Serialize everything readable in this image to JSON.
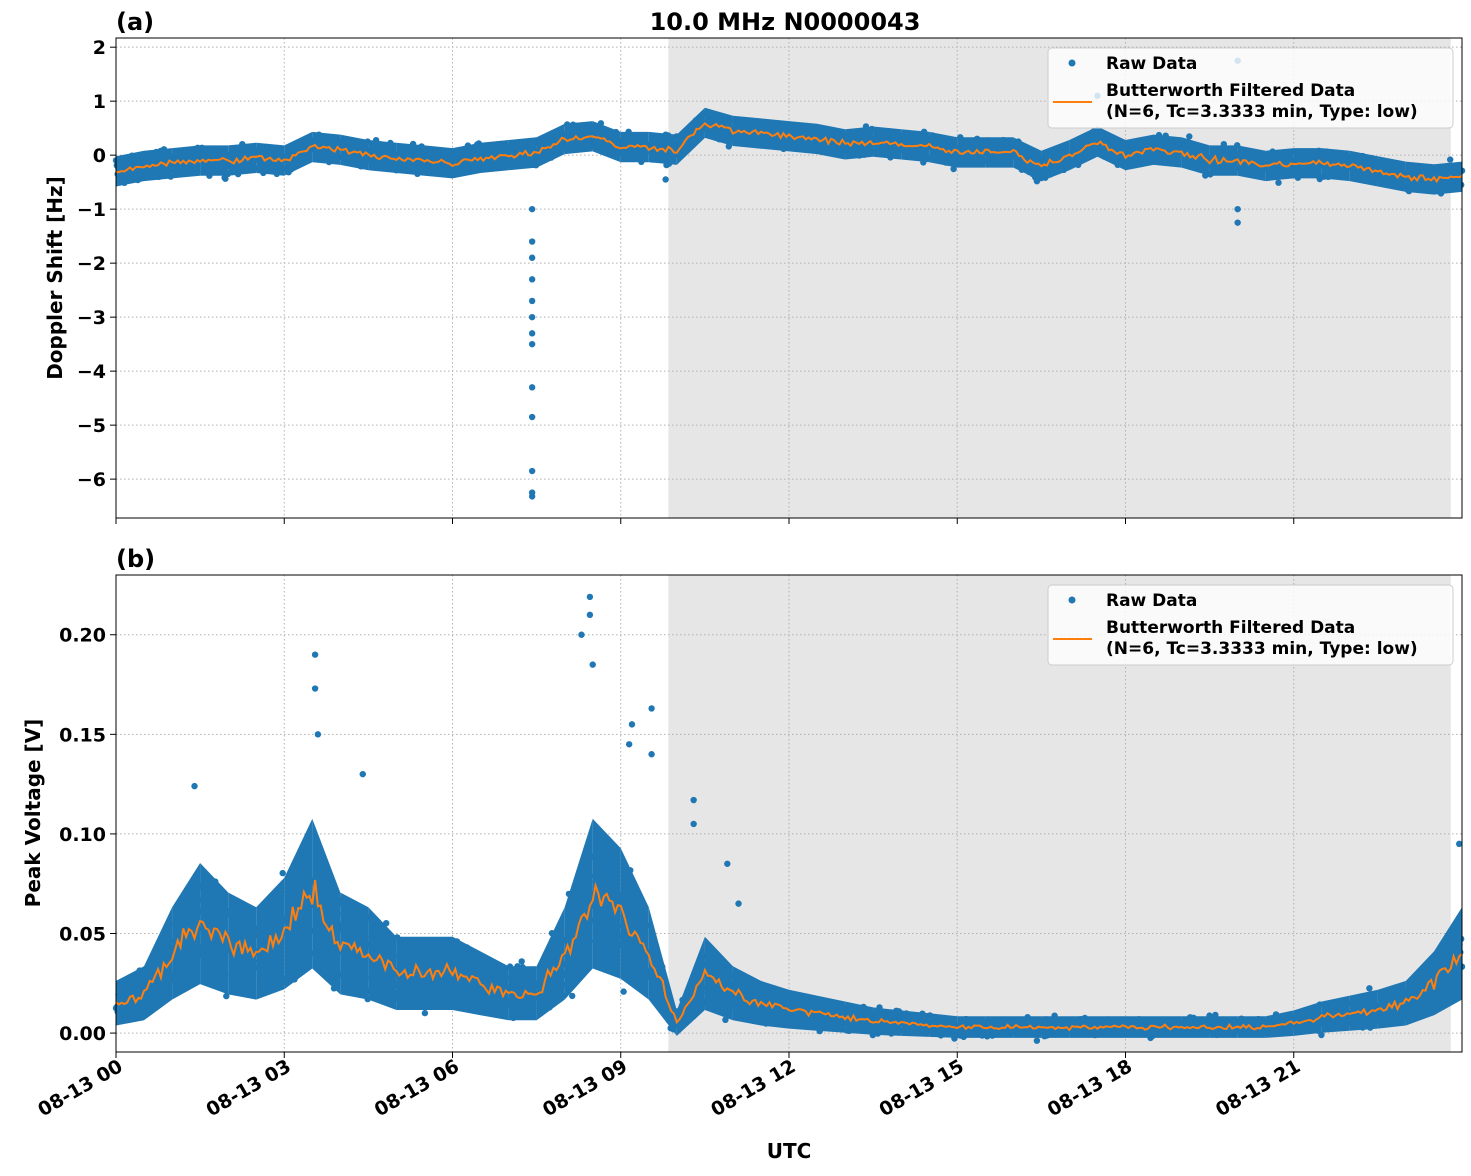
{
  "chart_data": [
    {
      "type": "scatter",
      "panel_label": "(a)",
      "title": "10.0 MHz N0000043",
      "xlabel": "",
      "ylabel": "Doppler Shift [Hz]",
      "xlim_hours": [
        0,
        24
      ],
      "ylim": [
        -6.72,
        2.17
      ],
      "yticks": [
        2,
        1,
        0,
        -1,
        -2,
        -3,
        -4,
        -5,
        -6
      ],
      "ytick_labels": [
        "2",
        "1",
        "0",
        "−1",
        "−2",
        "−3",
        "−4",
        "−5",
        "−6"
      ],
      "grid": true,
      "shaded_region_hours": [
        9.85,
        23.8
      ],
      "legend_position": "top-right",
      "legend": [
        "Raw Data",
        "Butterworth Filtered Data",
        "(N=6, Tc=3.3333 min, Type: low)"
      ],
      "filtered_step_hours": 0.5,
      "filtered": [
        -0.3,
        -0.2,
        -0.15,
        -0.1,
        -0.1,
        -0.05,
        -0.1,
        0.15,
        0.1,
        0.0,
        -0.05,
        -0.1,
        -0.15,
        -0.05,
        0.0,
        0.05,
        0.3,
        0.35,
        0.15,
        0.15,
        0.1,
        0.6,
        0.45,
        0.4,
        0.35,
        0.3,
        0.2,
        0.25,
        0.2,
        0.15,
        0.05,
        0.05,
        0.05,
        -0.2,
        0.0,
        0.25,
        0.0,
        0.1,
        0.05,
        -0.1,
        -0.1,
        -0.2,
        -0.15,
        -0.15,
        -0.2,
        -0.3,
        -0.4,
        -0.45,
        -0.4
      ],
      "raw_spread": 0.35,
      "raw_outliers": [
        [
          7.42,
          -1.0
        ],
        [
          7.42,
          -1.6
        ],
        [
          7.42,
          -1.9
        ],
        [
          7.42,
          -2.3
        ],
        [
          7.42,
          -2.7
        ],
        [
          7.42,
          -3.0
        ],
        [
          7.42,
          -3.3
        ],
        [
          7.42,
          -3.5
        ],
        [
          7.42,
          -4.3
        ],
        [
          7.42,
          -4.85
        ],
        [
          7.42,
          -5.85
        ],
        [
          7.42,
          -6.25
        ],
        [
          7.42,
          -6.32
        ],
        [
          9.8,
          -0.45
        ],
        [
          20.0,
          -1.25
        ],
        [
          20.0,
          -1.0
        ],
        [
          20.0,
          1.75
        ],
        [
          17.5,
          1.1
        ]
      ]
    },
    {
      "type": "scatter",
      "panel_label": "(b)",
      "xlabel": "UTC",
      "ylabel": "Peak Voltage [V]",
      "xlim_hours": [
        0,
        24
      ],
      "ylim": [
        -0.0095,
        0.23
      ],
      "yticks": [
        0.2,
        0.15,
        0.1,
        0.05,
        0.0
      ],
      "ytick_labels": [
        "0.20",
        "0.15",
        "0.10",
        "0.05",
        "0.00"
      ],
      "xticks_hours": [
        0,
        3,
        6,
        9,
        12,
        15,
        18,
        21
      ],
      "xtick_labels": [
        "08-13 00",
        "08-13 03",
        "08-13 06",
        "08-13 09",
        "08-13 12",
        "08-13 15",
        "08-13 18",
        "08-13 21"
      ],
      "grid": true,
      "shaded_region_hours": [
        9.85,
        23.8
      ],
      "legend_position": "top-right",
      "legend": [
        "Raw Data",
        "Butterworth Filtered Data",
        "(N=6, Tc=3.3333 min, Type: low)"
      ],
      "filtered_step_hours": 0.5,
      "filtered": [
        0.015,
        0.02,
        0.04,
        0.055,
        0.045,
        0.04,
        0.05,
        0.07,
        0.045,
        0.04,
        0.03,
        0.03,
        0.03,
        0.025,
        0.02,
        0.02,
        0.04,
        0.07,
        0.06,
        0.04,
        0.005,
        0.03,
        0.02,
        0.015,
        0.012,
        0.01,
        0.008,
        0.006,
        0.005,
        0.004,
        0.003,
        0.003,
        0.003,
        0.003,
        0.003,
        0.003,
        0.003,
        0.003,
        0.003,
        0.003,
        0.003,
        0.003,
        0.005,
        0.008,
        0.01,
        0.012,
        0.015,
        0.025,
        0.04
      ],
      "raw_spread_factor": 0.6,
      "raw_spread_floor": 0.005,
      "raw_outliers": [
        [
          3.55,
          0.19
        ],
        [
          3.55,
          0.173
        ],
        [
          3.6,
          0.15
        ],
        [
          4.4,
          0.13
        ],
        [
          8.3,
          0.2
        ],
        [
          8.45,
          0.219
        ],
        [
          8.45,
          0.21
        ],
        [
          8.5,
          0.185
        ],
        [
          9.2,
          0.155
        ],
        [
          9.15,
          0.145
        ],
        [
          9.55,
          0.163
        ],
        [
          9.55,
          0.14
        ],
        [
          1.4,
          0.124
        ],
        [
          10.3,
          0.117
        ],
        [
          10.3,
          0.105
        ],
        [
          10.9,
          0.085
        ],
        [
          11.1,
          0.065
        ],
        [
          23.95,
          0.095
        ]
      ]
    }
  ]
}
